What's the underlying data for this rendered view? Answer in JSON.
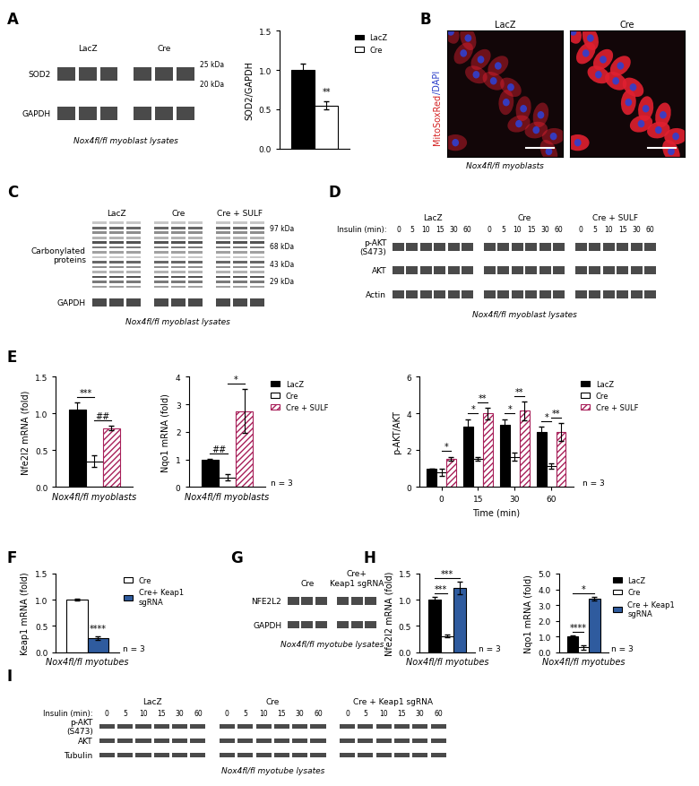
{
  "chart_data": [
    {
      "type": "bar",
      "ylabel": "SOD2/GAPDH",
      "categories": [
        null
      ],
      "series": [
        {
          "name": "LacZ",
          "color": "#000000",
          "values": [
            1.0
          ],
          "errors": [
            0.08
          ]
        },
        {
          "name": "Cre",
          "color": "#ffffff",
          "values": [
            0.55
          ],
          "errors": [
            0.05
          ]
        }
      ],
      "ylim": [
        0,
        1.5
      ],
      "yticks": [
        {
          "value": 0,
          "label": "0.0"
        },
        {
          "value": 0.5,
          "label": "0.5"
        },
        {
          "value": 1.0,
          "label": "1.0"
        },
        {
          "value": 1.5,
          "label": "1.5"
        }
      ],
      "tick_labels": "y",
      "legend": "right",
      "annotations": [
        {
          "text": "**",
          "category": 0,
          "series": [
            1
          ]
        }
      ]
    },
    {
      "panel": "E",
      "type": "bar",
      "ylabel": "Nfe2l2 mRNA (fold)",
      "xlabel": "Nox4fl/fl myoblasts",
      "categories": [
        null
      ],
      "series": [
        {
          "name": "LacZ",
          "color": "#000000",
          "values": [
            1.05
          ],
          "errors": [
            0.1
          ]
        },
        {
          "name": "Cre",
          "color": "#ffffff",
          "values": [
            0.35
          ],
          "errors": [
            0.08
          ]
        },
        {
          "name": "Cre + SULF",
          "color": "#a8205a",
          "line_style": "hatched",
          "values": [
            0.8
          ],
          "errors": [
            0.03
          ]
        }
      ],
      "ylim": [
        0,
        1.5
      ],
      "yticks": [
        {
          "value": 0,
          "label": "0.0"
        },
        {
          "value": 0.5,
          "label": "0.5"
        },
        {
          "value": 1.0,
          "label": "1.0"
        },
        {
          "value": 1.5,
          "label": "1.5"
        }
      ],
      "tick_labels": "y",
      "annotations": [
        {
          "text": "***",
          "category": 0,
          "series": [
            0,
            1
          ]
        },
        {
          "text": "##",
          "category": 0,
          "series": [
            1,
            2
          ]
        }
      ]
    },
    {
      "type": "bar",
      "ylabel": "Nqo1 mRNA (fold)",
      "xlabel": "Nox4fl/fl myoblasts",
      "categories": [
        null
      ],
      "series": [
        {
          "name": "LacZ",
          "color": "#000000",
          "values": [
            1.0
          ],
          "errors": [
            0.03
          ]
        },
        {
          "name": "Cre",
          "color": "#ffffff",
          "values": [
            0.35
          ],
          "errors": [
            0.12
          ]
        },
        {
          "name": "Cre + SULF",
          "color": "#a8205a",
          "line_style": "hatched",
          "values": [
            2.75
          ],
          "errors": [
            0.8
          ]
        }
      ],
      "ylim": [
        0,
        4
      ],
      "yticks": [
        0,
        1,
        2,
        3,
        4
      ],
      "tick_labels": "y",
      "legend": "right",
      "note": "n = 3",
      "annotations": [
        {
          "text": "##",
          "category": 0,
          "series": [
            0,
            1
          ]
        },
        {
          "text": "*",
          "category": 0,
          "series": [
            1,
            2
          ]
        }
      ]
    },
    {
      "type": "bar",
      "ylabel": "p-AKT/AKT",
      "xlabel": "Time (min)",
      "categories": [
        "0",
        "15",
        "30",
        "60"
      ],
      "series": [
        {
          "name": "LacZ",
          "color": "#000000",
          "values": [
            1.0,
            3.3,
            3.4,
            3.0
          ],
          "errors": [
            0.0,
            0.4,
            0.3,
            0.3
          ]
        },
        {
          "name": "Cre",
          "color": "#ffffff",
          "values": [
            0.8,
            1.55,
            1.65,
            1.15
          ],
          "errors": [
            0.2,
            0.1,
            0.2,
            0.15
          ]
        },
        {
          "name": "Cre + SULF",
          "color": "#a8205a",
          "line_style": "hatched",
          "values": [
            1.55,
            4.0,
            4.15,
            3.0
          ],
          "errors": [
            0.1,
            0.3,
            0.5,
            0.5
          ]
        }
      ],
      "ylim": [
        0,
        6
      ],
      "yticks": [
        0,
        2,
        4,
        6
      ],
      "legend": "right",
      "note": "n = 3",
      "annotations": [
        {
          "text": "*",
          "category": 0,
          "series": [
            1,
            2
          ]
        },
        {
          "text": "*",
          "category": 1,
          "series": [
            0,
            1
          ]
        },
        {
          "text": "**",
          "category": 1,
          "series": [
            1,
            2
          ]
        },
        {
          "text": "*",
          "category": 2,
          "series": [
            0,
            1
          ]
        },
        {
          "text": "**",
          "category": 2,
          "series": [
            1,
            2
          ]
        },
        {
          "text": "*",
          "category": 3,
          "series": [
            0,
            1
          ]
        },
        {
          "text": "**",
          "category": 3,
          "series": [
            1,
            2
          ]
        }
      ]
    },
    {
      "panel": "F",
      "type": "bar",
      "ylabel": "Keap1 mRNA (fold)",
      "xlabel": "Nox4fl/fl myotubes",
      "categories": [
        null
      ],
      "series": [
        {
          "name": "Cre",
          "color": "#ffffff",
          "values": [
            1.0
          ],
          "errors": [
            0.02
          ]
        },
        {
          "name": "Cre+ Keap1\nsgRNA",
          "color": "#2f5b9e",
          "values": [
            0.27
          ],
          "errors": [
            0.03
          ]
        }
      ],
      "ylim": [
        0,
        1.5
      ],
      "yticks": [
        {
          "value": 0,
          "label": "0.0"
        },
        {
          "value": 0.5,
          "label": "0.5"
        },
        {
          "value": 1.0,
          "label": "1.0"
        },
        {
          "value": 1.5,
          "label": "1.5"
        }
      ],
      "tick_labels": "y",
      "legend": "right",
      "note": "n = 3",
      "annotations": [
        {
          "text": "****",
          "category": 0,
          "series": [
            1
          ]
        }
      ]
    },
    {
      "panel": "H",
      "type": "bar",
      "ylabel": "Nfe2l2 mRNA (fold)",
      "xlabel": "Nox4fl/fl myotubes",
      "categories": [
        null
      ],
      "series": [
        {
          "name": "LacZ",
          "color": "#000000",
          "values": [
            1.0
          ],
          "errors": [
            0.05
          ]
        },
        {
          "name": "Cre",
          "color": "#ffffff",
          "values": [
            0.31
          ],
          "errors": [
            0.02
          ]
        },
        {
          "name": "Cre + Keap1\nsgRNA",
          "color": "#2f5b9e",
          "values": [
            1.22
          ],
          "errors": [
            0.12
          ]
        }
      ],
      "ylim": [
        0,
        1.5
      ],
      "yticks": [
        {
          "value": 0,
          "label": "0.0"
        },
        {
          "value": 0.5,
          "label": "0.5"
        },
        {
          "value": 1.0,
          "label": "1.0"
        },
        {
          "value": 1.5,
          "label": "1.5"
        }
      ],
      "tick_labels": "y",
      "note": "n = 3",
      "annotations": [
        {
          "text": "***",
          "category": 0,
          "series": [
            0,
            1
          ]
        },
        {
          "text": "***",
          "category": 0,
          "series": [
            0,
            2
          ]
        }
      ]
    },
    {
      "type": "bar",
      "ylabel": "Nqo1 mRNA (fold)",
      "xlabel": "Nox4fl/fl myotubes",
      "categories": [
        null
      ],
      "series": [
        {
          "name": "LacZ",
          "color": "#000000",
          "values": [
            1.0
          ],
          "errors": [
            0.04
          ]
        },
        {
          "name": "Cre",
          "color": "#ffffff",
          "values": [
            0.3
          ],
          "errors": [
            0.12
          ]
        },
        {
          "name": "Cre + Keap1\nsgRNA",
          "color": "#2f5b9e",
          "values": [
            3.4
          ],
          "errors": [
            0.12
          ]
        }
      ],
      "ylim": [
        0,
        5
      ],
      "yticks": [
        {
          "value": 0,
          "label": "0.0"
        },
        {
          "value": 1,
          "label": "1.0"
        },
        {
          "value": 2,
          "label": "2.0"
        },
        {
          "value": 3,
          "label": "3.0"
        },
        {
          "value": 4,
          "label": "4.0"
        },
        {
          "value": 5,
          "label": "5.0"
        }
      ],
      "tick_labels": "y",
      "legend": "right",
      "note": "n = 3",
      "annotations": [
        {
          "text": "****",
          "category": 0,
          "series": [
            0,
            1
          ]
        },
        {
          "text": "*",
          "category": 0,
          "series": [
            0,
            2
          ]
        }
      ]
    }
  ],
  "blots": [
    {
      "panel": "A",
      "groups": [
        {
          "label": "LacZ",
          "lanes": 3
        },
        {
          "label": "Cre",
          "lanes": 3
        }
      ],
      "rows": [
        {
          "label": "SOD2"
        },
        {
          "label": "GAPDH"
        }
      ],
      "markers": [
        {
          "label": "25 kDa",
          "row": 0
        },
        {
          "label": "20 kDa",
          "row": 0
        }
      ],
      "caption": "Nox4fl/fl myoblast lysates"
    },
    {
      "panel": "C",
      "groups": [
        {
          "label": "LacZ",
          "lanes": 3
        },
        {
          "label": "Cre",
          "lanes": 3
        },
        {
          "label": "Cre + SULF",
          "lanes": 3
        }
      ],
      "rows": [
        {
          "label": "Carbonylated\nproteins",
          "type": "smear"
        },
        {
          "label": "GAPDH"
        }
      ],
      "markers": [
        {
          "label": "97 kDa",
          "row": 0
        },
        {
          "label": "68 kDa",
          "row": 0
        },
        {
          "label": "43 kDa",
          "row": 0
        },
        {
          "label": "29 kDa",
          "row": 0
        }
      ],
      "caption": "Nox4fl/fl myoblast lysates"
    },
    {
      "panel": "D",
      "lane_header": "Insulin (min):",
      "groups": [
        {
          "label": "LacZ",
          "lanes": [
            "0",
            "5",
            "10",
            "15",
            "30",
            "60"
          ]
        },
        {
          "label": "Cre",
          "lanes": [
            "0",
            "5",
            "10",
            "15",
            "30",
            "60"
          ]
        },
        {
          "label": "Cre + SULF",
          "lanes": [
            "0",
            "5",
            "10",
            "15",
            "30",
            "60"
          ]
        }
      ],
      "rows": [
        {
          "label": "p-AKT\n(S473)"
        },
        {
          "label": "AKT"
        },
        {
          "label": "Actin"
        }
      ],
      "caption": "Nox4fl/fl myoblast lysates"
    },
    {
      "panel": "G",
      "groups": [
        {
          "label": "Cre",
          "lanes": 3
        },
        {
          "label": "Cre+\nKeap1 sgRNA",
          "lanes": 3
        }
      ],
      "rows": [
        {
          "label": "NFE2L2"
        },
        {
          "label": "GAPDH"
        }
      ],
      "caption": "Nox4fl/fl myotube lysates"
    },
    {
      "panel": "I",
      "lane_header": "Insulin (min):",
      "groups": [
        {
          "label": "LacZ",
          "lanes": [
            "0",
            "5",
            "10",
            "15",
            "30",
            "60"
          ]
        },
        {
          "label": "Cre",
          "lanes": [
            "0",
            "5",
            "10",
            "15",
            "30",
            "60"
          ]
        },
        {
          "label": "Cre + Keap1 sgRNA",
          "lanes": [
            "0",
            "5",
            "10",
            "15",
            "30",
            "60"
          ]
        }
      ],
      "rows": [
        {
          "label": "p-AKT\n(S473)"
        },
        {
          "label": "AKT"
        },
        {
          "label": "Tubulin"
        }
      ],
      "caption": "Nox4fl/fl myotube lysates"
    }
  ],
  "images": [
    {
      "panel": "B",
      "type": "image",
      "titles": [
        "LacZ",
        "Cre"
      ],
      "stain": [
        {
          "text": "MitoSoxRed",
          "color": "#d42020"
        },
        {
          "text": "/DAPI",
          "color": "#2a3dc8"
        }
      ],
      "caption": "Nox4fl/fl myoblasts"
    }
  ]
}
